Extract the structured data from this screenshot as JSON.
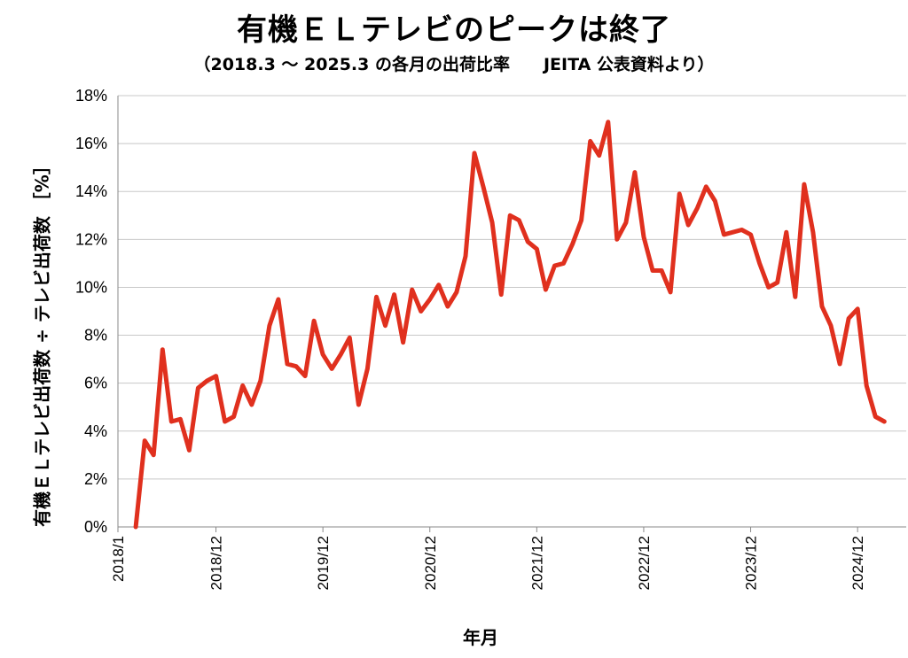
{
  "chart_data": {
    "type": "line",
    "title": "有機ＥＬテレビのピークは終了",
    "subtitle": "（2018.3 ～ 2025.3 の各月の出荷比率　　JEITA 公表資料より）",
    "xlabel": "年月",
    "ylabel": "有機ＥＬテレビ出荷数 ÷ テレビ出荷数 ［%］",
    "ylim": [
      0,
      18
    ],
    "yticks": [
      "0%",
      "2%",
      "4%",
      "6%",
      "8%",
      "10%",
      "12%",
      "14%",
      "16%",
      "18%"
    ],
    "xticks": [
      "2018/1",
      "2018/12",
      "2019/12",
      "2020/12",
      "2021/12",
      "2022/12",
      "2023/12",
      "2024/12"
    ],
    "grid": true,
    "line_color": "#e0301e",
    "x_start": "2018/3",
    "values": [
      0.0,
      3.6,
      3.0,
      7.4,
      4.4,
      4.5,
      3.2,
      5.8,
      6.1,
      6.3,
      4.4,
      4.6,
      5.9,
      5.1,
      6.1,
      8.4,
      9.5,
      6.8,
      6.7,
      6.3,
      8.6,
      7.2,
      6.6,
      7.2,
      7.9,
      5.1,
      6.6,
      9.6,
      8.4,
      9.7,
      7.7,
      9.9,
      9.0,
      9.5,
      10.1,
      9.2,
      9.8,
      11.3,
      15.6,
      14.2,
      12.7,
      9.7,
      13.0,
      12.8,
      11.9,
      11.6,
      9.9,
      10.9,
      11.0,
      11.8,
      12.8,
      16.1,
      15.5,
      16.9,
      12.0,
      12.7,
      14.8,
      12.1,
      10.7,
      10.7,
      9.8,
      13.9,
      12.6,
      13.3,
      14.2,
      13.6,
      12.2,
      12.3,
      12.4,
      12.2,
      11.0,
      10.0,
      10.2,
      12.3,
      9.6,
      14.3,
      12.3,
      9.2,
      8.4,
      6.8,
      8.7,
      9.1,
      5.9,
      4.6,
      4.4
    ]
  }
}
